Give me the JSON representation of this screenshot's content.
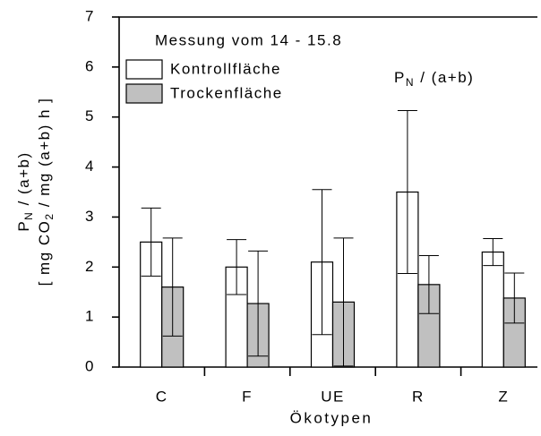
{
  "chart_data": {
    "type": "bar",
    "title": "Messung vom 14 - 15.8",
    "annotation": [
      "P",
      "N",
      " / (a+b)"
    ],
    "y_label": [
      [
        "P",
        "N",
        " / (a+b)"
      ],
      [
        "[ mg CO",
        "2",
        " / mg (a+b) h ]"
      ]
    ],
    "x_label": "Ökotypen",
    "categories": [
      "C",
      "F",
      "UE",
      "R",
      "Z"
    ],
    "series": [
      {
        "name": "Kontrollfläche",
        "color": "#ffffff",
        "values": [
          2.5,
          2.0,
          2.1,
          3.5,
          2.3
        ],
        "errors": [
          0.68,
          0.55,
          1.45,
          1.63,
          0.27
        ]
      },
      {
        "name": "Trockenfläche",
        "color": "#c0c0c0",
        "values": [
          1.6,
          1.27,
          1.3,
          1.65,
          1.38
        ],
        "errors": [
          0.98,
          1.05,
          1.28,
          0.58,
          0.5
        ]
      }
    ],
    "ylim": [
      0,
      7
    ],
    "yticks": [
      0,
      1,
      2,
      3,
      4,
      5,
      6,
      7
    ],
    "grid": false,
    "legend": "upper left"
  }
}
